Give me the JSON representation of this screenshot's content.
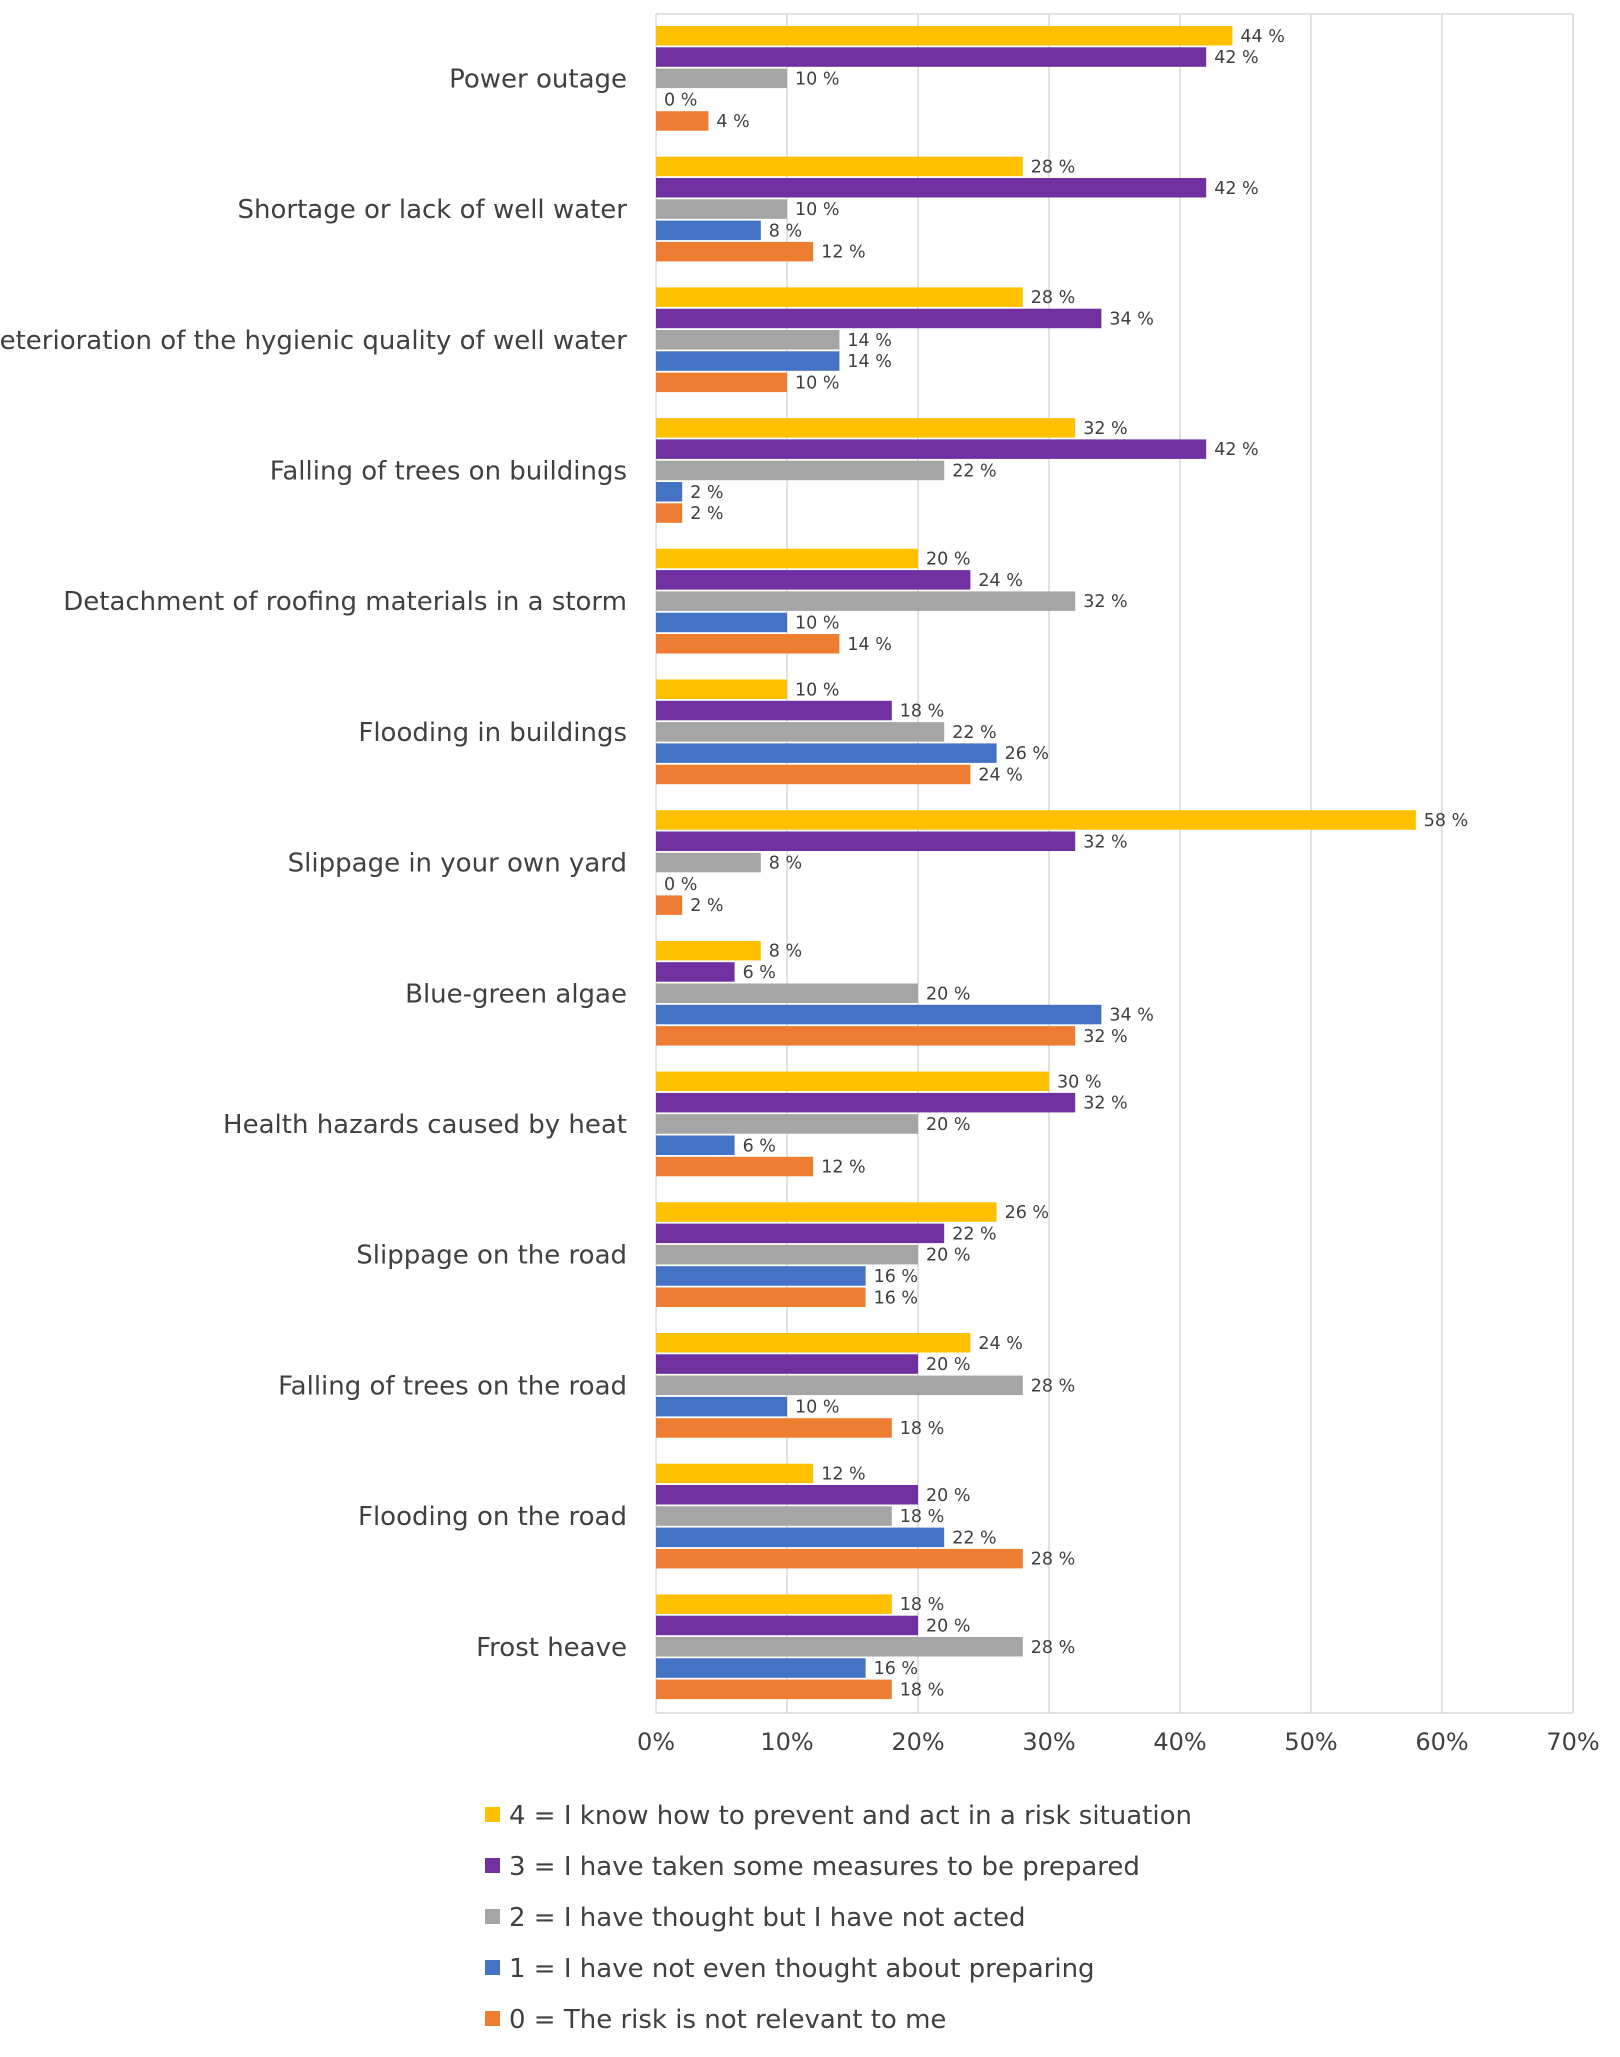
{
  "chart_data": {
    "type": "bar",
    "orientation": "horizontal",
    "categories": [
      "Power outage",
      "Shortage or lack of well water",
      "Deterioration of the hygienic quality of well water",
      "Falling of trees on buildings",
      "Detachment of roofing materials in a storm",
      "Flooding in buildings",
      "Slippage in your own yard",
      "Blue-green algae",
      "Health hazards caused by heat",
      "Slippage on the road",
      "Falling of trees on the road",
      "Flooding on the road",
      "Frost heave"
    ],
    "series": [
      {
        "name": "4 = I know how to prevent and act in a risk situation",
        "color": "#FFC000",
        "values": [
          44,
          28,
          28,
          32,
          20,
          10,
          58,
          8,
          30,
          26,
          24,
          12,
          18
        ]
      },
      {
        "name": "3 = I have taken some measures to be prepared",
        "color": "#7030A0",
        "values": [
          42,
          42,
          34,
          42,
          24,
          18,
          32,
          6,
          32,
          22,
          20,
          20,
          20
        ]
      },
      {
        "name": "2 = I have thought but I have not acted",
        "color": "#A5A5A5",
        "values": [
          10,
          10,
          14,
          22,
          32,
          22,
          8,
          20,
          20,
          20,
          28,
          18,
          28
        ]
      },
      {
        "name": "1 = I have not even thought about preparing",
        "color": "#4472C4",
        "values": [
          0,
          8,
          14,
          2,
          10,
          26,
          0,
          34,
          6,
          16,
          10,
          22,
          16
        ]
      },
      {
        "name": "0 = The risk is not relevant to me",
        "color": "#ED7D31",
        "values": [
          4,
          12,
          10,
          2,
          14,
          24,
          2,
          32,
          12,
          16,
          18,
          28,
          18
        ]
      }
    ],
    "value_suffix": " %",
    "xlim": [
      0,
      70
    ],
    "xticks": [
      0,
      10,
      20,
      30,
      40,
      50,
      60,
      70
    ],
    "xtick_labels": [
      "0%",
      "10%",
      "20%",
      "30%",
      "40%",
      "50%",
      "60%",
      "70%"
    ],
    "grid": true,
    "legend_position": "bottom",
    "title": "",
    "xlabel": "",
    "ylabel": ""
  }
}
